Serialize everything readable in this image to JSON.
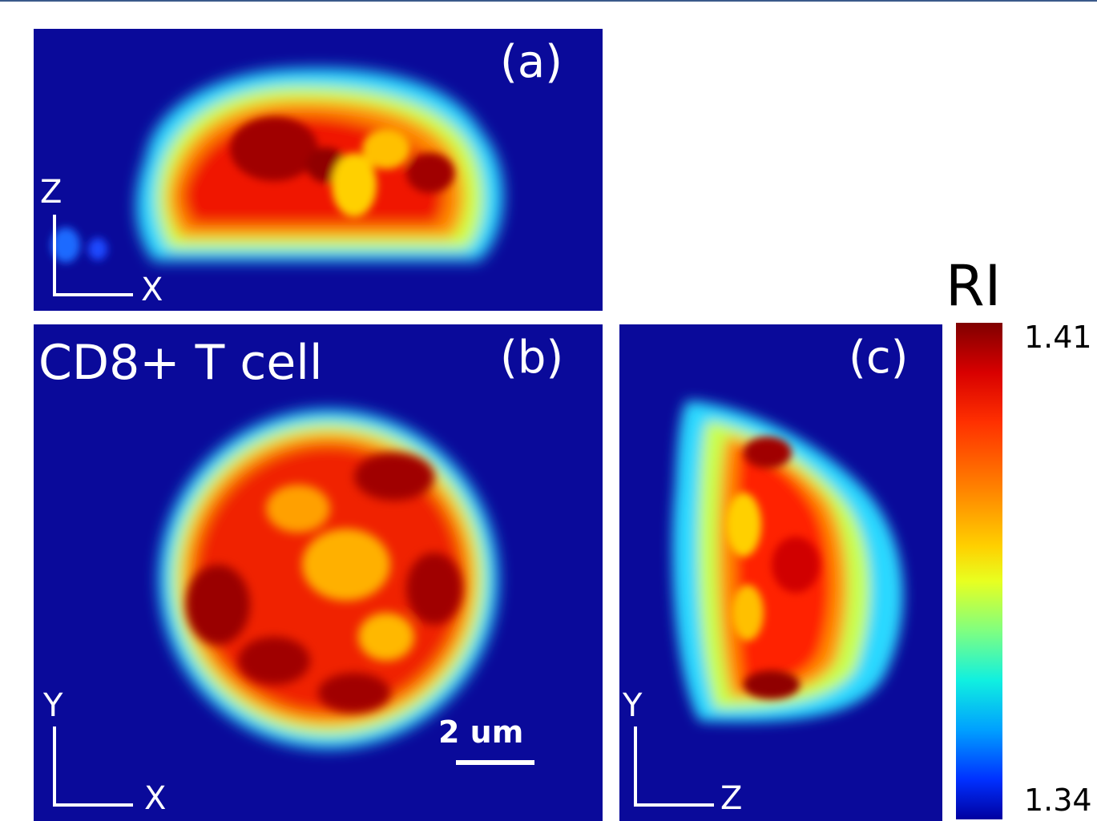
{
  "panels": {
    "a": {
      "label": "(a)",
      "axis_vertical": "Z",
      "axis_horizontal": "X"
    },
    "b": {
      "label": "(b)",
      "title": "CD8+ T cell",
      "axis_vertical": "Y",
      "axis_horizontal": "X",
      "scale_bar": "2 um"
    },
    "c": {
      "label": "(c)",
      "axis_vertical": "Y",
      "axis_horizontal": "Z"
    }
  },
  "colorbar": {
    "title": "RI",
    "max_label": "1.41",
    "min_label": "1.34",
    "colormap": "jet",
    "colors": [
      "#800000",
      "#ff0000",
      "#ff8000",
      "#ffff00",
      "#80ff80",
      "#00ffff",
      "#0080ff",
      "#0000ff",
      "#00008f"
    ]
  },
  "background_color": "#0a0a9a"
}
